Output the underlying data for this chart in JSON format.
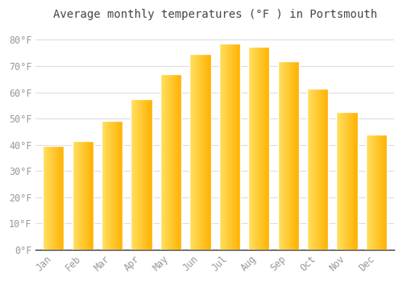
{
  "title": "Average monthly temperatures (°F ) in Portsmouth",
  "months": [
    "Jan",
    "Feb",
    "Mar",
    "Apr",
    "May",
    "Jun",
    "Jul",
    "Aug",
    "Sep",
    "Oct",
    "Nov",
    "Dec"
  ],
  "values": [
    39.5,
    41.5,
    49.0,
    57.5,
    67.0,
    74.5,
    78.5,
    77.5,
    72.0,
    61.5,
    52.5,
    44.0
  ],
  "bar_color_left": "#FFB300",
  "bar_color_right": "#FFA000",
  "bar_color_highlight": "#FFD54F",
  "background_color": "#FFFFFF",
  "grid_color": "#DDDDDD",
  "text_color": "#999999",
  "border_color": "#BBBBBB",
  "ylim": [
    0,
    85
  ],
  "yticks": [
    0,
    10,
    20,
    30,
    40,
    50,
    60,
    70,
    80
  ],
  "ytick_labels": [
    "0°F",
    "10°F",
    "20°F",
    "30°F",
    "40°F",
    "50°F",
    "60°F",
    "70°F",
    "80°F"
  ],
  "title_fontsize": 10,
  "tick_fontsize": 8.5
}
